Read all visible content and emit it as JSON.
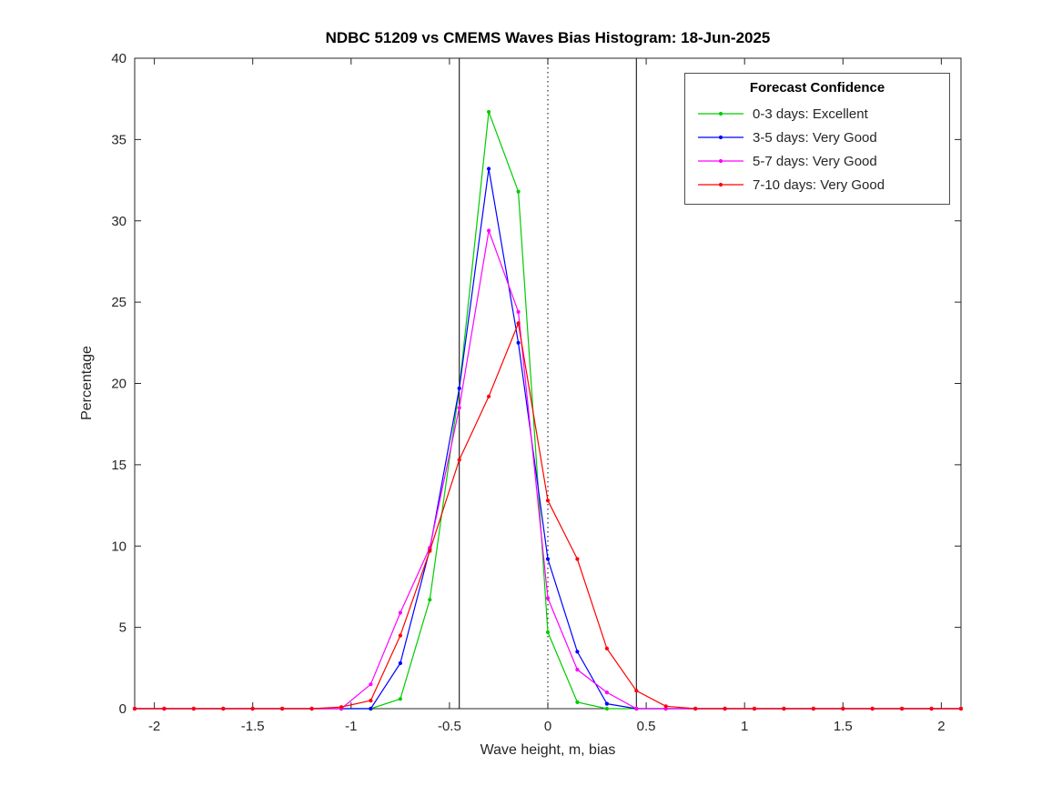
{
  "figure": {
    "background": "#ffffff",
    "axis_color": "#262626",
    "text_color": "#262626"
  },
  "chart_data": {
    "type": "line",
    "title": "NDBC 51209 vs CMEMS Waves Bias Histogram: 18-Jun-2025",
    "xlabel": "Wave height, m, bias",
    "ylabel": "Percentage",
    "xlim": [
      -2.1,
      2.1
    ],
    "ylim": [
      0,
      40
    ],
    "xticks": [
      -2,
      -1.5,
      -1,
      -0.5,
      0,
      0.5,
      1,
      1.5,
      2
    ],
    "xtick_labels": [
      "-2",
      "-1.5",
      "-1",
      "-0.5",
      "0",
      "0.5",
      "1",
      "1.5",
      "2"
    ],
    "yticks": [
      0,
      5,
      10,
      15,
      20,
      25,
      30,
      35,
      40
    ],
    "ytick_labels": [
      "0",
      "5",
      "10",
      "15",
      "20",
      "25",
      "30",
      "35",
      "40"
    ],
    "grid": false,
    "box": true,
    "legend": {
      "title": "Forecast Confidence",
      "position": "top-right"
    },
    "reference_lines": [
      {
        "x": -0.45,
        "style": "solid",
        "color": "#000000"
      },
      {
        "x": 0,
        "style": "dotted",
        "color": "#000000"
      },
      {
        "x": 0.45,
        "style": "solid",
        "color": "#000000"
      }
    ],
    "x": [
      -2.1,
      -1.95,
      -1.8,
      -1.65,
      -1.5,
      -1.35,
      -1.2,
      -1.05,
      -0.9,
      -0.75,
      -0.6,
      -0.45,
      -0.3,
      -0.15,
      0,
      0.15,
      0.3,
      0.45,
      0.6,
      0.75,
      0.9,
      1.05,
      1.2,
      1.35,
      1.5,
      1.65,
      1.8,
      1.95,
      2.1
    ],
    "series": [
      {
        "name": "0-3 days: Excellent",
        "color": "#00cc00",
        "marker": "dot",
        "values": [
          0,
          0,
          0,
          0,
          0,
          0,
          0,
          0,
          0,
          0.6,
          6.7,
          19.7,
          36.7,
          31.8,
          4.7,
          0.4,
          0,
          0,
          0,
          0,
          0,
          0,
          0,
          0,
          0,
          0,
          0,
          0,
          0
        ]
      },
      {
        "name": "3-5 days: Very Good",
        "color": "#0000ff",
        "marker": "dot",
        "values": [
          0,
          0,
          0,
          0,
          0,
          0,
          0,
          0,
          0,
          2.8,
          9.8,
          19.7,
          33.2,
          22.5,
          9.2,
          3.5,
          0.3,
          0,
          0,
          0,
          0,
          0,
          0,
          0,
          0,
          0,
          0,
          0,
          0
        ]
      },
      {
        "name": "5-7 days: Very Good",
        "color": "#ff00ff",
        "marker": "dot",
        "values": [
          0,
          0,
          0,
          0,
          0,
          0,
          0,
          0,
          1.5,
          5.9,
          9.9,
          18.5,
          29.4,
          24.4,
          6.8,
          2.4,
          1.0,
          0,
          0,
          0,
          0,
          0,
          0,
          0,
          0,
          0,
          0,
          0,
          0
        ]
      },
      {
        "name": "7-10 days: Very Good",
        "color": "#ff0000",
        "marker": "dot",
        "values": [
          0,
          0,
          0,
          0,
          0,
          0,
          0,
          0.1,
          0.5,
          4.5,
          9.7,
          15.3,
          19.2,
          23.7,
          12.8,
          9.2,
          3.7,
          1.1,
          0.15,
          0,
          0,
          0,
          0,
          0,
          0,
          0,
          0,
          0,
          0
        ]
      }
    ]
  }
}
